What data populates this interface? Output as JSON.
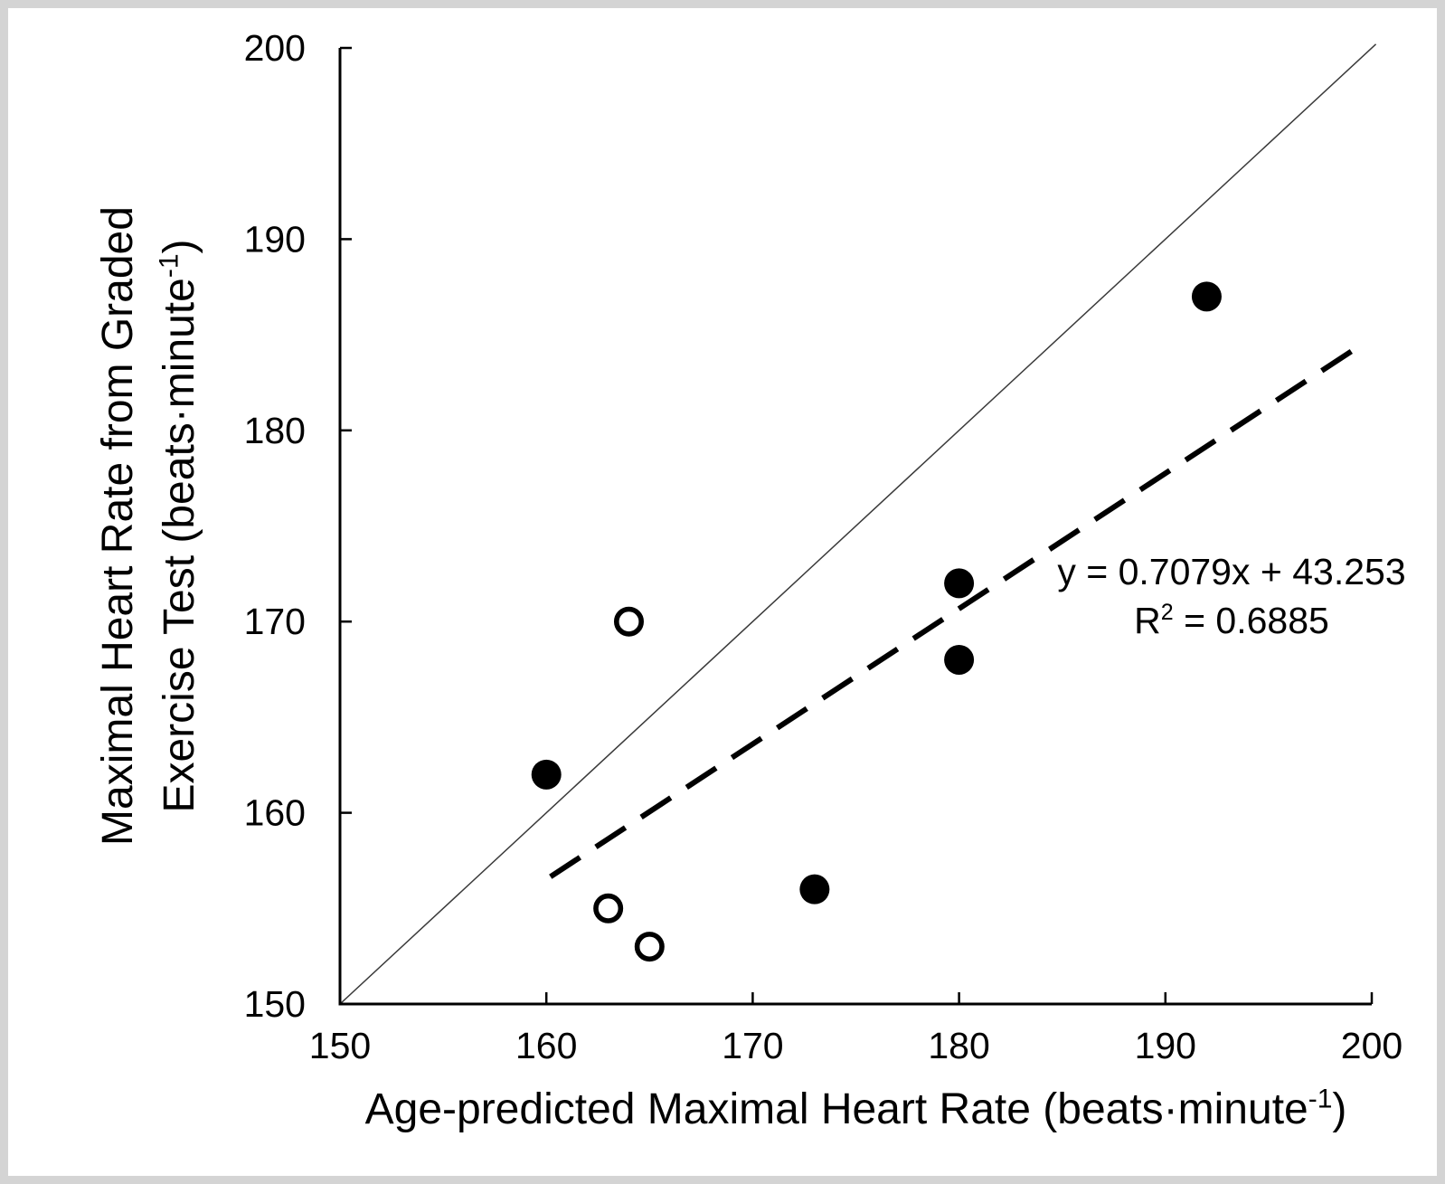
{
  "page": {
    "background": "#ffffff",
    "frame_color": "#d4d4d4"
  },
  "chart_data": {
    "type": "scatter",
    "title": "",
    "xlabel_rich": [
      {
        "t": "Age-predicted Maximal Heart Rate (beats·minute"
      },
      {
        "t": "-1",
        "sup": true
      },
      {
        "t": ")"
      }
    ],
    "ylabel_rich_lines": [
      [
        {
          "t": "Maximal Heart Rate from Graded"
        }
      ],
      [
        {
          "t": "Exercise Test (beats·minute"
        },
        {
          "t": "-1",
          "sup": true
        },
        {
          "t": ")"
        }
      ]
    ],
    "xlim": [
      150,
      200
    ],
    "ylim": [
      150,
      200
    ],
    "xticks": [
      150,
      160,
      170,
      180,
      190,
      200
    ],
    "yticks": [
      150,
      160,
      170,
      180,
      190,
      200
    ],
    "grid": false,
    "legend": "none",
    "series": [
      {
        "name": "filled-circle-group",
        "marker": "filled-circle",
        "color": "#000000",
        "points": [
          [
            160,
            162
          ],
          [
            173,
            156
          ],
          [
            180,
            168
          ],
          [
            180,
            172
          ],
          [
            192,
            187
          ]
        ]
      },
      {
        "name": "open-circle-group",
        "marker": "open-circle",
        "color": "#000000",
        "points": [
          [
            163,
            155
          ],
          [
            164,
            170
          ],
          [
            165,
            153
          ]
        ]
      }
    ],
    "trendline": {
      "style": "dashed",
      "color": "#000000",
      "slope": 0.7079,
      "intercept": 43.253,
      "x_range": [
        160.2,
        199.7
      ],
      "equation_rich_lines": [
        [
          {
            "t": "y = 0.7079x + 43.253"
          }
        ],
        [
          {
            "t": "R"
          },
          {
            "t": "2",
            "sup": true
          },
          {
            "t": " = 0.6885"
          }
        ]
      ]
    },
    "identity_line": {
      "style": "solid-thin",
      "color": "#3a3a3a",
      "from": [
        150,
        150
      ],
      "to": [
        200.2,
        200.2
      ]
    }
  }
}
